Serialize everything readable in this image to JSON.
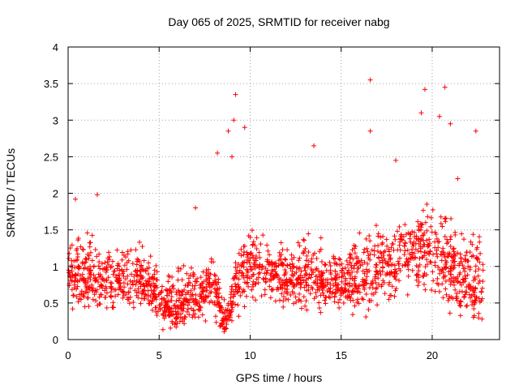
{
  "chart_data": {
    "type": "scatter",
    "title": "Day 065 of 2025, SRMTID for receiver nabg",
    "xlabel": "GPS time / hours",
    "ylabel": "SRMTID / TECUs",
    "xlim": [
      0,
      23.7
    ],
    "ylim": [
      0,
      4
    ],
    "xticks": [
      0,
      5,
      10,
      15,
      20
    ],
    "yticks": [
      0,
      0.5,
      1,
      1.5,
      2,
      2.5,
      3,
      3.5,
      4
    ],
    "xtick_labels": [
      "0",
      "5",
      "10",
      "15",
      "20"
    ],
    "ytick_labels": [
      "0",
      "0.5",
      "1",
      "1.5",
      "2",
      "2.5",
      "3",
      "3.5",
      "4"
    ],
    "grid": true,
    "marker": "plus",
    "series_color": "#ff0000",
    "x_range_observed": [
      0,
      22.8
    ],
    "outliers": [
      {
        "x": 9.2,
        "y": 3.35
      },
      {
        "x": 16.6,
        "y": 3.55
      },
      {
        "x": 19.6,
        "y": 3.42
      },
      {
        "x": 20.7,
        "y": 3.45
      },
      {
        "x": 8.8,
        "y": 2.85
      },
      {
        "x": 9.1,
        "y": 3.0
      },
      {
        "x": 9.7,
        "y": 2.9
      },
      {
        "x": 13.5,
        "y": 2.65
      },
      {
        "x": 16.6,
        "y": 2.85
      },
      {
        "x": 19.4,
        "y": 3.1
      },
      {
        "x": 20.4,
        "y": 3.05
      },
      {
        "x": 21.0,
        "y": 2.95
      },
      {
        "x": 22.4,
        "y": 2.85
      },
      {
        "x": 8.2,
        "y": 2.55
      },
      {
        "x": 9.0,
        "y": 2.5
      },
      {
        "x": 18.0,
        "y": 2.45
      },
      {
        "x": 21.4,
        "y": 2.2
      },
      {
        "x": 7.0,
        "y": 1.8
      },
      {
        "x": 1.6,
        "y": 1.98
      },
      {
        "x": 0.4,
        "y": 1.92
      }
    ],
    "envelope": [
      {
        "x": 0.5,
        "lo": 0.25,
        "mid": 0.9,
        "hi": 1.6
      },
      {
        "x": 2.0,
        "lo": 0.3,
        "mid": 0.8,
        "hi": 1.4
      },
      {
        "x": 3.5,
        "lo": 0.3,
        "mid": 0.85,
        "hi": 1.5
      },
      {
        "x": 4.5,
        "lo": 0.3,
        "mid": 0.75,
        "hi": 1.3
      },
      {
        "x": 5.2,
        "lo": 0.05,
        "mid": 0.45,
        "hi": 0.95
      },
      {
        "x": 6.0,
        "lo": 0.05,
        "mid": 0.45,
        "hi": 1.1
      },
      {
        "x": 7.0,
        "lo": 0.1,
        "mid": 0.6,
        "hi": 1.2
      },
      {
        "x": 8.0,
        "lo": 0.2,
        "mid": 0.7,
        "hi": 1.3
      },
      {
        "x": 8.6,
        "lo": 0.0,
        "mid": 0.25,
        "hi": 0.6
      },
      {
        "x": 9.5,
        "lo": 0.3,
        "mid": 0.95,
        "hi": 1.6
      },
      {
        "x": 10.5,
        "lo": 0.4,
        "mid": 1.05,
        "hi": 1.7
      },
      {
        "x": 11.5,
        "lo": 0.3,
        "mid": 0.8,
        "hi": 1.5
      },
      {
        "x": 12.5,
        "lo": 0.3,
        "mid": 0.85,
        "hi": 1.5
      },
      {
        "x": 13.5,
        "lo": 0.3,
        "mid": 0.9,
        "hi": 1.6
      },
      {
        "x": 14.5,
        "lo": 0.25,
        "mid": 0.75,
        "hi": 1.4
      },
      {
        "x": 15.5,
        "lo": 0.3,
        "mid": 0.75,
        "hi": 1.5
      },
      {
        "x": 16.5,
        "lo": 0.25,
        "mid": 0.8,
        "hi": 1.6
      },
      {
        "x": 17.5,
        "lo": 0.4,
        "mid": 1.05,
        "hi": 1.7
      },
      {
        "x": 18.5,
        "lo": 0.5,
        "mid": 1.15,
        "hi": 1.8
      },
      {
        "x": 19.5,
        "lo": 0.5,
        "mid": 1.25,
        "hi": 2.0
      },
      {
        "x": 20.5,
        "lo": 0.3,
        "mid": 1.1,
        "hi": 2.0
      },
      {
        "x": 21.5,
        "lo": 0.2,
        "mid": 0.85,
        "hi": 1.8
      },
      {
        "x": 22.5,
        "lo": 0.0,
        "mid": 0.7,
        "hi": 1.8
      }
    ]
  }
}
